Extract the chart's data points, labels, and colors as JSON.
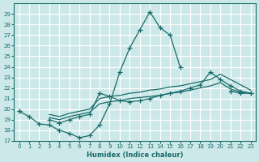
{
  "xlabel": "Humidex (Indice chaleur)",
  "bg_color": "#cce8e8",
  "grid_color": "#ffffff",
  "line_color": "#1a6b6b",
  "xlim": [
    -0.5,
    23.5
  ],
  "ylim": [
    17,
    30
  ],
  "xticks": [
    0,
    1,
    2,
    3,
    4,
    5,
    6,
    7,
    8,
    9,
    10,
    11,
    12,
    13,
    14,
    15,
    16,
    17,
    18,
    19,
    20,
    21,
    22,
    23
  ],
  "yticks": [
    17,
    18,
    19,
    20,
    21,
    22,
    23,
    24,
    25,
    26,
    27,
    28,
    29
  ],
  "series": [
    [
      19.8,
      19.3,
      18.6,
      18.5,
      18.0,
      17.7,
      17.3,
      17.5,
      18.5,
      20.5,
      23.5,
      25.8,
      27.5,
      29.2,
      27.7,
      27.0,
      24.0,
      null,
      null,
      null,
      null,
      21.7,
      21.5,
      21.5
    ],
    [
      19.8,
      null,
      null,
      19.0,
      18.7,
      19.0,
      19.3,
      19.5,
      21.5,
      21.2,
      20.8,
      20.7,
      20.8,
      21.0,
      21.3,
      21.5,
      21.7,
      22.0,
      22.3,
      23.5,
      22.8,
      22.2,
      21.7,
      21.5
    ],
    [
      19.8,
      null,
      null,
      19.2,
      19.0,
      19.3,
      19.5,
      19.7,
      20.5,
      20.7,
      20.8,
      21.0,
      21.1,
      21.2,
      21.3,
      21.5,
      21.6,
      21.8,
      22.0,
      22.2,
      22.5,
      21.9,
      21.6,
      21.5
    ],
    [
      19.8,
      null,
      null,
      19.5,
      19.3,
      19.6,
      19.8,
      20.0,
      21.0,
      21.2,
      21.3,
      21.5,
      21.6,
      21.8,
      21.9,
      22.1,
      22.2,
      22.4,
      22.6,
      22.8,
      23.3,
      22.8,
      22.3,
      21.8
    ]
  ],
  "has_markers": [
    true,
    true,
    false,
    false
  ]
}
